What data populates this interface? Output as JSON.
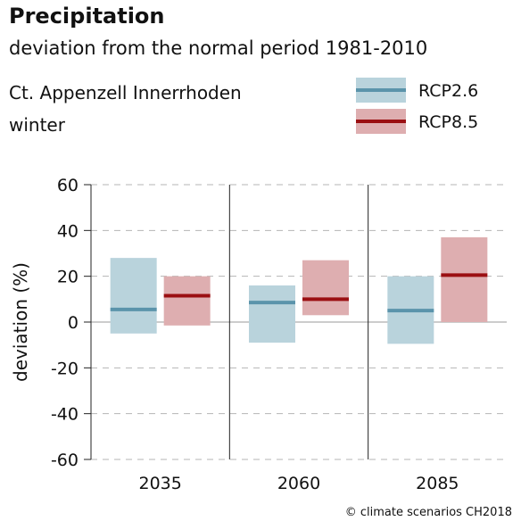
{
  "header": {
    "title": "Precipitation",
    "subtitle": "deviation from the normal period 1981-2010",
    "region": "Ct. Appenzell Innerrhoden",
    "season": "winter"
  },
  "footer": {
    "credit": "© climate scenarios CH2018"
  },
  "chart_data": {
    "type": "bar",
    "ylabel": "deviation (%)",
    "ylim": [
      -60,
      60
    ],
    "yticks": [
      -60,
      -40,
      -20,
      0,
      20,
      40,
      60
    ],
    "grid": true,
    "legend_position": "top-right",
    "categories": [
      "2035",
      "2060",
      "2085"
    ],
    "series": [
      {
        "name": "RCP2.6",
        "box_color": "#b9d3dc",
        "line_color": "#5b94ab",
        "low": [
          -5,
          -9,
          -9.5
        ],
        "median": [
          5.5,
          8.5,
          5
        ],
        "high": [
          28,
          16,
          20
        ]
      },
      {
        "name": "RCP8.5",
        "box_color": "#deaeb0",
        "line_color": "#9b0f12",
        "low": [
          -1.5,
          3,
          0
        ],
        "median": [
          11.5,
          10,
          20.5
        ],
        "high": [
          20,
          27,
          37
        ]
      }
    ]
  }
}
